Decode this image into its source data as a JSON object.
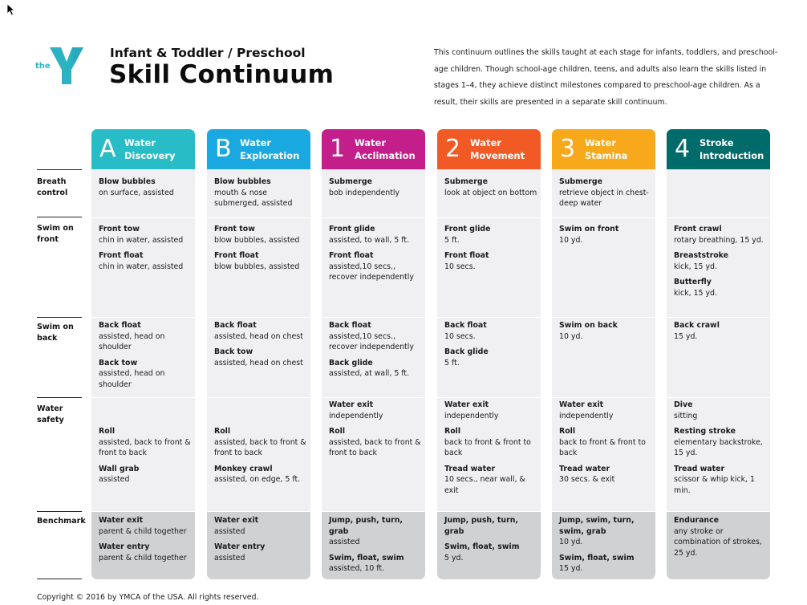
{
  "brand": {
    "logo_text": "the",
    "logo_alt": "YMCA"
  },
  "header": {
    "subtitle": "Infant & Toddler / Preschool",
    "title": "Skill Continuum",
    "intro": "This continuum outlines the skills taught at each stage for infants, toddlers, and preschool-age children. Though school-age children, teens, and adults also learn the skills listed in stages 1–4, they achieve distinct milestones compared to preschool-age children. As a result, their skills are presented in a separate skill continuum."
  },
  "row_labels": [
    "Breath control",
    "Swim on front",
    "Swim on back",
    "Water safety",
    "Benchmark"
  ],
  "columns": [
    {
      "letter": "A",
      "name": "Water Discovery",
      "color": "#28bcc6",
      "cells": [
        [
          {
            "t": "Blow bubbles",
            "d": "on surface, assisted"
          }
        ],
        [
          {
            "t": "Front tow",
            "d": "chin in water, assisted"
          },
          {
            "t": "Front float",
            "d": "chin in water, assisted"
          }
        ],
        [
          {
            "t": "Back float",
            "d": "assisted, head on shoulder"
          },
          {
            "t": "Back tow",
            "d": "assisted, head on shoulder"
          }
        ],
        [
          {
            "t": "Roll",
            "d": "assisted, back to front & front to back"
          },
          {
            "t": "Wall grab",
            "d": "assisted"
          }
        ],
        [
          {
            "t": "Water exit",
            "d": "parent & child together"
          },
          {
            "t": "Water entry",
            "d": "parent & child together"
          }
        ]
      ]
    },
    {
      "letter": "B",
      "name": "Water Exploration",
      "color": "#1aa8e0",
      "cells": [
        [
          {
            "t": "Blow bubbles",
            "d": "mouth & nose submerged, assisted"
          }
        ],
        [
          {
            "t": "Front tow",
            "d": "blow bubbles, assisted"
          },
          {
            "t": "Front float",
            "d": "blow bubbles, assisted"
          }
        ],
        [
          {
            "t": "Back float",
            "d": "assisted, head on chest"
          },
          {
            "t": "Back tow",
            "d": "assisted, head on chest"
          }
        ],
        [
          {
            "t": "Roll",
            "d": "assisted, back to front & front to back"
          },
          {
            "t": "Monkey crawl",
            "d": "assisted, on edge, 5 ft."
          }
        ],
        [
          {
            "t": "Water exit",
            "d": "assisted"
          },
          {
            "t": "Water entry",
            "d": "assisted"
          }
        ]
      ]
    },
    {
      "letter": "1",
      "name": "Water Acclimation",
      "color": "#c41e8a",
      "cells": [
        [
          {
            "t": "Submerge",
            "d": "bob independently"
          }
        ],
        [
          {
            "t": "Front glide",
            "d": "assisted, to wall, 5 ft."
          },
          {
            "t": "Front float",
            "d": "assisted,10 secs., recover independently"
          }
        ],
        [
          {
            "t": "Back float",
            "d": "assisted,10 secs., recover independently"
          },
          {
            "t": "Back glide",
            "d": "assisted, at wall, 5 ft."
          }
        ],
        [
          {
            "t": "Water exit",
            "d": "independently"
          },
          {
            "t": "Roll",
            "d": "assisted, back to front & front to back"
          }
        ],
        [
          {
            "t": "Jump, push, turn, grab",
            "d": "assisted"
          },
          {
            "t": "Swim, float, swim",
            "d": "assisted, 10 ft."
          }
        ]
      ]
    },
    {
      "letter": "2",
      "name": "Water Movement",
      "color": "#f15a24",
      "cells": [
        [
          {
            "t": "Submerge",
            "d": "look at object on bottom"
          }
        ],
        [
          {
            "t": "Front glide",
            "d": "5 ft."
          },
          {
            "t": "Front float",
            "d": "10 secs."
          }
        ],
        [
          {
            "t": "Back float",
            "d": "10 secs."
          },
          {
            "t": "Back glide",
            "d": "5 ft."
          }
        ],
        [
          {
            "t": "Water exit",
            "d": "independently"
          },
          {
            "t": "Roll",
            "d": "back to front & front to back"
          },
          {
            "t": "Tread water",
            "d": "10 secs., near wall, & exit"
          }
        ],
        [
          {
            "t": "Jump, push, turn, grab",
            "d": ""
          },
          {
            "t": "Swim, float, swim",
            "d": "5 yd."
          }
        ]
      ]
    },
    {
      "letter": "3",
      "name": "Water Stamina",
      "color": "#f7a81b",
      "cells": [
        [
          {
            "t": "Submerge",
            "d": "retrieve object in chest-deep water"
          }
        ],
        [
          {
            "t": "Swim on front",
            "d": "10 yd."
          }
        ],
        [
          {
            "t": "Swim on back",
            "d": "10 yd."
          }
        ],
        [
          {
            "t": "Water exit",
            "d": "independently"
          },
          {
            "t": "Roll",
            "d": "back to front & front to back"
          },
          {
            "t": "Tread water",
            "d": "30 secs. & exit"
          }
        ],
        [
          {
            "t": "Jump, swim, turn, swim, grab",
            "d": "10 yd."
          },
          {
            "t": "Swim, float, swim",
            "d": "15 yd."
          }
        ]
      ]
    },
    {
      "letter": "4",
      "name": "Stroke Introduction",
      "color": "#006b6b",
      "cells": [
        [],
        [
          {
            "t": "Front crawl",
            "d": "rotary breathing, 15 yd."
          },
          {
            "t": "Breaststroke",
            "d": "kick, 15 yd."
          },
          {
            "t": "Butterfly",
            "d": "kick, 15 yd."
          }
        ],
        [
          {
            "t": "Back crawl",
            "d": "15 yd."
          }
        ],
        [
          {
            "t": "Dive",
            "d": "sitting"
          },
          {
            "t": "Resting stroke",
            "d": "elementary backstroke, 15 yd."
          },
          {
            "t": "Tread water",
            "d": "scissor & whip kick, 1 min."
          }
        ],
        [
          {
            "t": "Endurance",
            "d": "any stroke or combination of strokes, 25 yd."
          }
        ]
      ]
    }
  ],
  "footer": {
    "copyright": "Copyright © 2016 by YMCA of the USA. All rights reserved."
  }
}
